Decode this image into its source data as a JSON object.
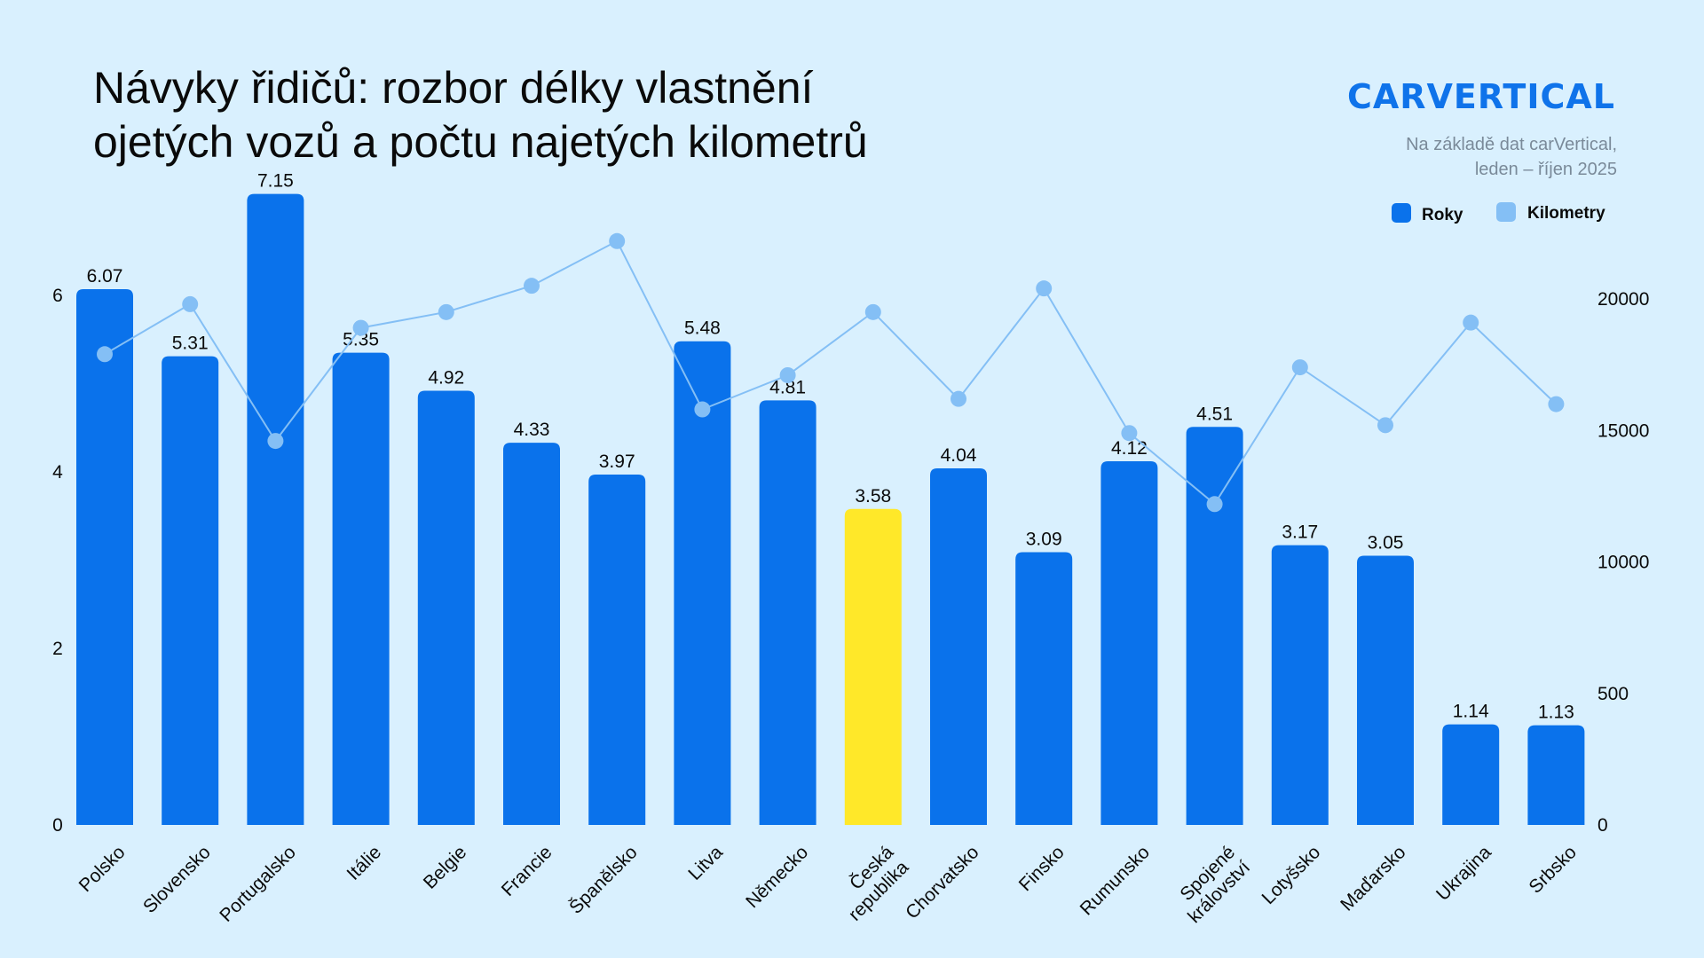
{
  "header": {
    "title_line1": "Návyky řidičů: rozbor délky vlastnění",
    "title_line2": "ojetých vozů a počtu najetých kilometrů",
    "logo": "CARVERTICAL",
    "source_line1": "Na základě dat carVertical,",
    "source_line2": "leden – říjen 2025"
  },
  "legend": {
    "roky": "Roky",
    "kilometry": "Kilometry"
  },
  "colors": {
    "background": "#d9f0fe",
    "bar": "#0a72eb",
    "bar_highlight": "#ffe829",
    "line": "#84bff5",
    "brand": "#0f73ea"
  },
  "chart_data": {
    "type": "bar",
    "categories": [
      [
        "Polsko"
      ],
      [
        "Slovensko"
      ],
      [
        "Portugalsko"
      ],
      [
        "Itálie"
      ],
      [
        "Belgie"
      ],
      [
        "Francie"
      ],
      [
        "Španělsko"
      ],
      [
        "Litva"
      ],
      [
        "Německo"
      ],
      [
        "Česká",
        "republika"
      ],
      [
        "Chorvatsko"
      ],
      [
        "Finsko"
      ],
      [
        "Rumunsko"
      ],
      [
        "Spojené",
        "království"
      ],
      [
        "Lotyšsko"
      ],
      [
        "Maďarsko"
      ],
      [
        "Ukrajina"
      ],
      [
        "Srbsko"
      ]
    ],
    "highlight_index": 9,
    "series": [
      {
        "name": "Roky",
        "type": "bar",
        "axis": "left",
        "values": [
          6.07,
          5.31,
          7.15,
          5.35,
          4.92,
          4.33,
          3.97,
          5.48,
          4.81,
          3.58,
          4.04,
          3.09,
          4.12,
          4.51,
          3.17,
          3.05,
          1.14,
          1.13
        ],
        "labels": [
          "6.07",
          "5.31",
          "7.15",
          "5.35",
          "4.92",
          "4.33",
          "3.97",
          "5.48",
          "4.81",
          "3.58",
          "4.04",
          "3.09",
          "4.12",
          "4.51",
          "3.17",
          "3.05",
          "1.14",
          "1.13"
        ]
      },
      {
        "name": "Kilometry",
        "type": "line",
        "axis": "right",
        "values": [
          17900,
          19800,
          14600,
          18900,
          19500,
          20500,
          22200,
          15800,
          17100,
          19500,
          16200,
          20400,
          14900,
          12200,
          17400,
          15200,
          19100,
          16000
        ]
      }
    ],
    "y_left": {
      "range": [
        0,
        7.15
      ],
      "ticks": [
        0,
        2,
        4,
        6
      ],
      "tick_labels": [
        "0",
        "2",
        "4",
        "6"
      ]
    },
    "y_right": {
      "ticks": [
        0,
        500,
        10000,
        15000,
        20000
      ],
      "tick_labels": [
        "0",
        "500",
        "10000",
        "15000",
        "20000"
      ]
    },
    "grid": false,
    "legend_position": "top-right"
  }
}
